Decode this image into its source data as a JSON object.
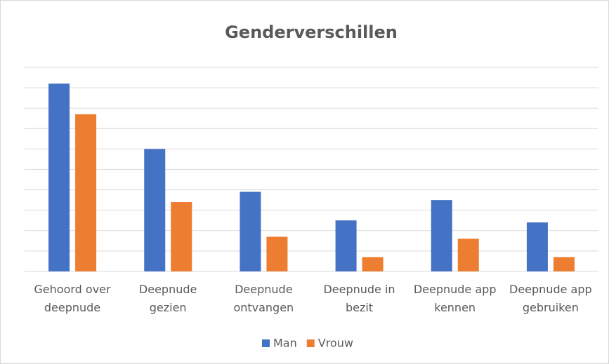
{
  "chart_data": {
    "type": "bar",
    "title": "Genderverschillen",
    "categories": [
      "Gehoord over deepnude",
      "Deepnude gezien",
      "Deepnude ontvangen",
      "Deepnude in bezit",
      "Deepnude app kennen",
      "Deepnude app gebruiken"
    ],
    "series": [
      {
        "name": "Man",
        "color": "#4472c4",
        "values": [
          9.2,
          6.0,
          3.9,
          2.5,
          3.5,
          2.4
        ]
      },
      {
        "name": "Vrouw",
        "color": "#ed7d31",
        "values": [
          7.7,
          3.4,
          1.7,
          0.7,
          1.6,
          0.7
        ]
      }
    ],
    "ylim": [
      0,
      10
    ],
    "yticks": [
      0,
      1,
      2,
      3,
      4,
      5,
      6,
      7,
      8,
      9,
      10
    ],
    "grid": true
  }
}
